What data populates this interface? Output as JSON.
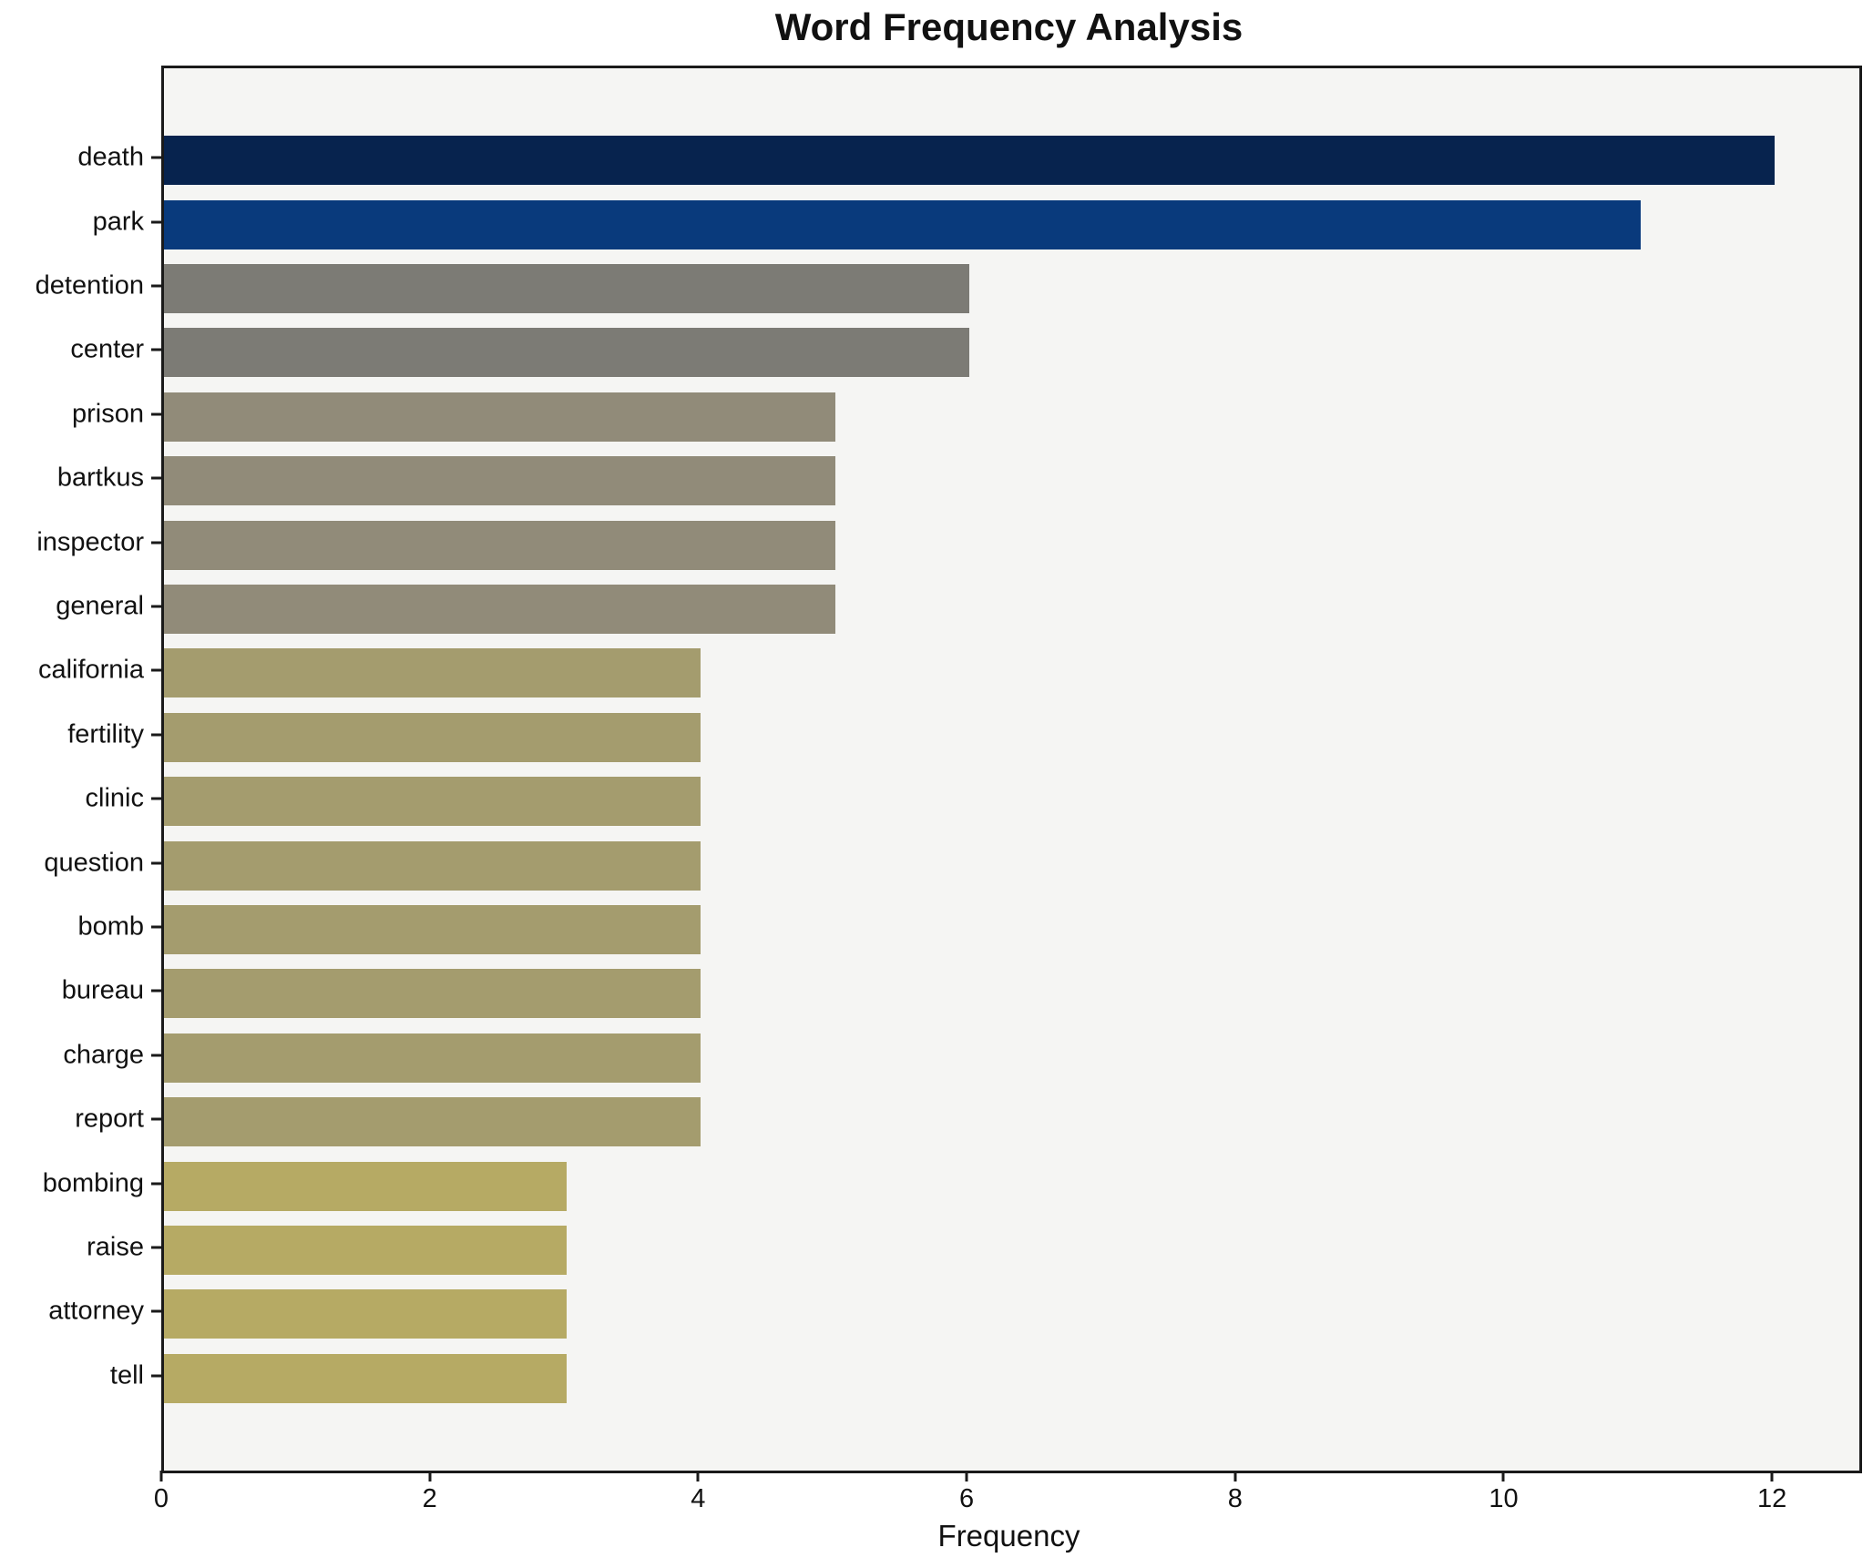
{
  "title": "Word Frequency Analysis",
  "chart_data": {
    "type": "bar",
    "orientation": "horizontal",
    "title": "Word Frequency Analysis",
    "xlabel": "Frequency",
    "ylabel": "",
    "categories": [
      "death",
      "park",
      "detention",
      "center",
      "prison",
      "bartkus",
      "inspector",
      "general",
      "california",
      "fertility",
      "clinic",
      "question",
      "bomb",
      "bureau",
      "charge",
      "report",
      "bombing",
      "raise",
      "attorney",
      "tell"
    ],
    "values": [
      12,
      11,
      6,
      6,
      5,
      5,
      5,
      5,
      4,
      4,
      4,
      4,
      4,
      4,
      4,
      4,
      3,
      3,
      3,
      3
    ],
    "bar_colors": [
      "#07234e",
      "#093a7c",
      "#7c7b75",
      "#7c7b75",
      "#918b79",
      "#918b79",
      "#918b79",
      "#918b79",
      "#a49c6e",
      "#a49c6e",
      "#a49c6e",
      "#a49c6e",
      "#a49c6e",
      "#a49c6e",
      "#a49c6e",
      "#a49c6e",
      "#b6aa64",
      "#b6aa64",
      "#b6aa64",
      "#b6aa64"
    ],
    "x_ticks": [
      0,
      2,
      4,
      6,
      8,
      10,
      12
    ],
    "xlim": [
      0,
      12.63
    ],
    "grid": false,
    "legend_position": "none",
    "plot_background": "#f5f5f3",
    "figure_background": "#ffffff",
    "spine_color": "#1a1a1a"
  }
}
